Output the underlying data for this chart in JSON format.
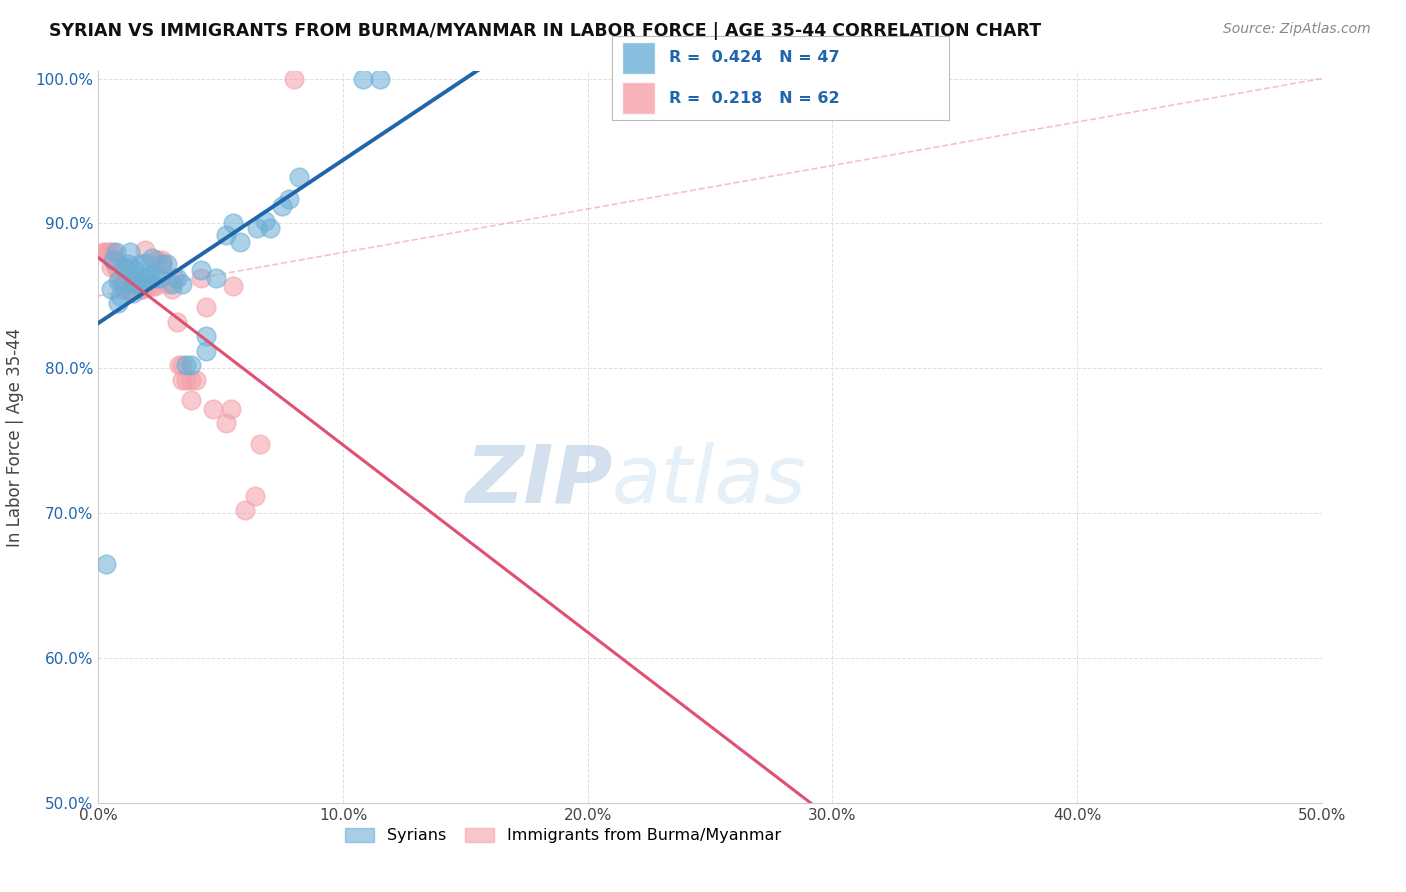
{
  "title": "SYRIAN VS IMMIGRANTS FROM BURMA/MYANMAR IN LABOR FORCE | AGE 35-44 CORRELATION CHART",
  "source": "Source: ZipAtlas.com",
  "ylabel": "In Labor Force | Age 35-44",
  "xlabel": "",
  "xlim": [
    0.0,
    0.5
  ],
  "ylim": [
    0.5,
    1.005
  ],
  "xticks": [
    0.0,
    0.1,
    0.2,
    0.3,
    0.4,
    0.5
  ],
  "yticks": [
    0.5,
    0.6,
    0.7,
    0.8,
    0.9,
    1.0
  ],
  "ytick_labels": [
    "50.0%",
    "60.0%",
    "70.0%",
    "80.0%",
    "90.0%",
    "100.0%"
  ],
  "xtick_labels": [
    "0.0%",
    "10.0%",
    "20.0%",
    "30.0%",
    "40.0%",
    "50.0%"
  ],
  "background_color": "#ffffff",
  "grid_color": "#e0e0e0",
  "syrian_color": "#6baed6",
  "burma_color": "#f4a0a8",
  "syrian_line_color": "#2166ac",
  "burma_line_color": "#e05070",
  "diagonal_color": "#f4a0a8",
  "R_syrian": 0.424,
  "N_syrian": 47,
  "R_burma": 0.218,
  "N_burma": 62,
  "legend_labels": [
    "Syrians",
    "Immigrants from Burma/Myanmar"
  ],
  "watermark_zip": "ZIP",
  "watermark_atlas": "atlas",
  "syrian_x": [
    0.003,
    0.005,
    0.006,
    0.007,
    0.008,
    0.008,
    0.009,
    0.01,
    0.01,
    0.011,
    0.012,
    0.013,
    0.014,
    0.014,
    0.015,
    0.015,
    0.016,
    0.017,
    0.018,
    0.019,
    0.02,
    0.021,
    0.022,
    0.023,
    0.025,
    0.026,
    0.028,
    0.03,
    0.032,
    0.034,
    0.036,
    0.038,
    0.042,
    0.044,
    0.044,
    0.048,
    0.052,
    0.055,
    0.058,
    0.065,
    0.068,
    0.07,
    0.075,
    0.078,
    0.082,
    0.108,
    0.115
  ],
  "syrian_y": [
    0.665,
    0.855,
    0.875,
    0.88,
    0.86,
    0.845,
    0.85,
    0.87,
    0.858,
    0.87,
    0.872,
    0.88,
    0.86,
    0.852,
    0.858,
    0.868,
    0.858,
    0.872,
    0.862,
    0.873,
    0.862,
    0.864,
    0.876,
    0.862,
    0.862,
    0.872,
    0.872,
    0.858,
    0.862,
    0.858,
    0.802,
    0.802,
    0.868,
    0.812,
    0.822,
    0.862,
    0.892,
    0.9,
    0.887,
    0.897,
    0.902,
    0.897,
    0.912,
    0.917,
    0.932,
    1.0,
    1.0
  ],
  "burma_x": [
    0.002,
    0.003,
    0.004,
    0.005,
    0.005,
    0.006,
    0.006,
    0.006,
    0.007,
    0.007,
    0.008,
    0.008,
    0.009,
    0.009,
    0.01,
    0.01,
    0.011,
    0.011,
    0.012,
    0.012,
    0.013,
    0.013,
    0.014,
    0.014,
    0.014,
    0.015,
    0.015,
    0.016,
    0.017,
    0.017,
    0.018,
    0.018,
    0.019,
    0.02,
    0.021,
    0.022,
    0.023,
    0.024,
    0.024,
    0.026,
    0.026,
    0.028,
    0.03,
    0.031,
    0.032,
    0.033,
    0.034,
    0.034,
    0.036,
    0.038,
    0.038,
    0.04,
    0.042,
    0.044,
    0.047,
    0.052,
    0.054,
    0.055,
    0.06,
    0.064,
    0.066,
    0.08
  ],
  "burma_y": [
    0.88,
    0.88,
    0.88,
    0.87,
    0.88,
    0.88,
    0.875,
    0.875,
    0.87,
    0.87,
    0.87,
    0.87,
    0.86,
    0.865,
    0.86,
    0.855,
    0.855,
    0.855,
    0.855,
    0.855,
    0.855,
    0.855,
    0.862,
    0.855,
    0.855,
    0.855,
    0.857,
    0.857,
    0.855,
    0.855,
    0.855,
    0.855,
    0.882,
    0.857,
    0.858,
    0.857,
    0.857,
    0.875,
    0.875,
    0.873,
    0.875,
    0.858,
    0.855,
    0.862,
    0.832,
    0.802,
    0.792,
    0.802,
    0.792,
    0.792,
    0.778,
    0.792,
    0.862,
    0.842,
    0.772,
    0.762,
    0.772,
    0.857,
    0.702,
    0.712,
    0.748,
    1.0
  ]
}
